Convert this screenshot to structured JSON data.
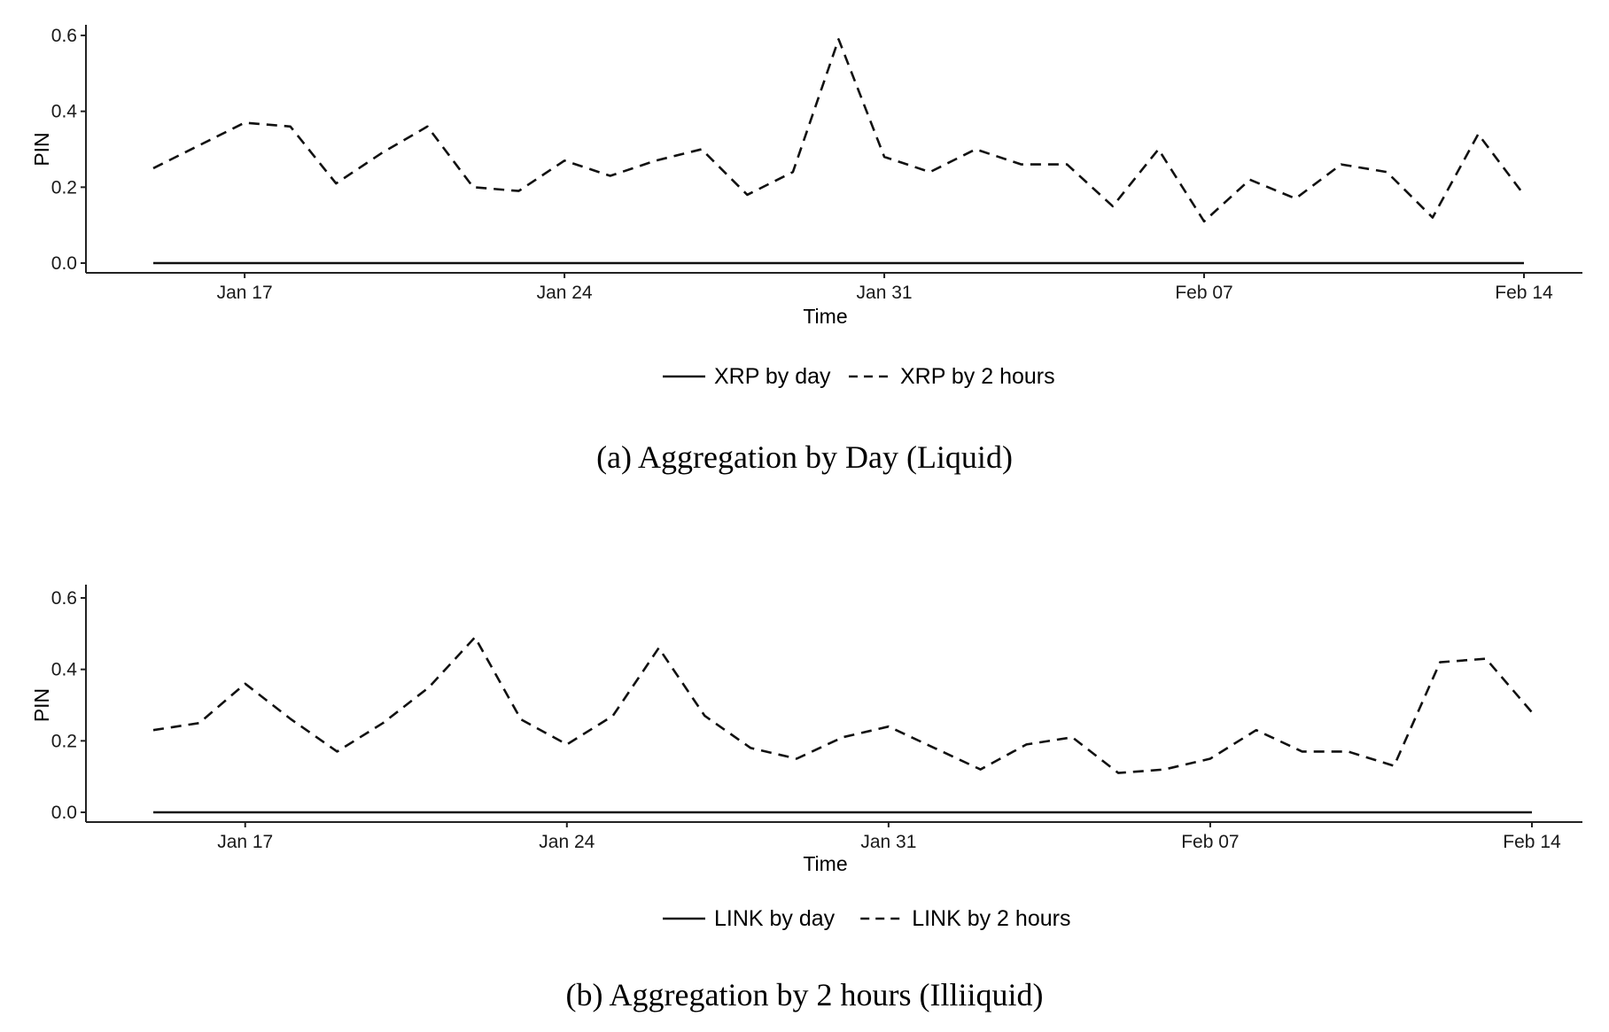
{
  "chart_data": [
    {
      "type": "line",
      "caption": "(a)  Aggregation by Day (Liquid)",
      "xlabel": "Time",
      "ylabel": "PIN",
      "ylim": [
        0,
        0.6
      ],
      "yticks": [
        "0.0",
        "0.2",
        "0.4",
        "0.6"
      ],
      "xticks": [
        {
          "date": "2022-01-17",
          "label": "Jan 17"
        },
        {
          "date": "2022-01-24",
          "label": "Jan 24"
        },
        {
          "date": "2022-01-31",
          "label": "Jan 31"
        },
        {
          "date": "2022-02-07",
          "label": "Feb 07"
        },
        {
          "date": "2022-02-14",
          "label": "Feb 14"
        }
      ],
      "legend_position": "bottom",
      "series": [
        {
          "name": "XRP by day",
          "style": "solid",
          "x": [
            "2022-01-15",
            "2022-02-14"
          ],
          "y": [
            0.0,
            0.0
          ]
        },
        {
          "name": "XRP by 2 hours",
          "style": "dashed",
          "x": [
            "2022-01-15",
            "2022-01-16",
            "2022-01-17",
            "2022-01-18",
            "2022-01-19",
            "2022-01-20",
            "2022-01-21",
            "2022-01-22",
            "2022-01-23",
            "2022-01-24",
            "2022-01-25",
            "2022-01-26",
            "2022-01-27",
            "2022-01-28",
            "2022-01-29",
            "2022-01-30",
            "2022-01-31",
            "2022-02-01",
            "2022-02-02",
            "2022-02-03",
            "2022-02-04",
            "2022-02-05",
            "2022-02-06",
            "2022-02-07",
            "2022-02-08",
            "2022-02-09",
            "2022-02-10",
            "2022-02-11",
            "2022-02-12",
            "2022-02-13",
            "2022-02-14"
          ],
          "y": [
            0.25,
            0.31,
            0.37,
            0.36,
            0.21,
            0.29,
            0.36,
            0.2,
            0.19,
            0.27,
            0.23,
            0.27,
            0.3,
            0.18,
            0.24,
            0.59,
            0.28,
            0.24,
            0.3,
            0.26,
            0.26,
            0.15,
            0.3,
            0.11,
            0.22,
            0.17,
            0.26,
            0.24,
            0.12,
            0.34,
            0.18
          ]
        }
      ]
    },
    {
      "type": "line",
      "caption": "(b)  Aggregation by 2 hours (Illiiquid)",
      "xlabel": "Time",
      "ylabel": "PIN",
      "ylim": [
        0,
        0.6
      ],
      "yticks": [
        "0.0",
        "0.2",
        "0.4",
        "0.6"
      ],
      "xticks": [
        {
          "date": "2022-01-17",
          "label": "Jan 17"
        },
        {
          "date": "2022-01-24",
          "label": "Jan 24"
        },
        {
          "date": "2022-01-31",
          "label": "Jan 31"
        },
        {
          "date": "2022-02-07",
          "label": "Feb 07"
        },
        {
          "date": "2022-02-14",
          "label": "Feb 14"
        }
      ],
      "legend_position": "bottom",
      "series": [
        {
          "name": "LINK by day",
          "style": "solid",
          "x": [
            "2022-01-15",
            "2022-02-14"
          ],
          "y": [
            0.0,
            0.0
          ]
        },
        {
          "name": "LINK by 2 hours",
          "style": "dashed",
          "x": [
            "2022-01-15",
            "2022-01-16",
            "2022-01-17",
            "2022-01-18",
            "2022-01-19",
            "2022-01-20",
            "2022-01-21",
            "2022-01-22",
            "2022-01-23",
            "2022-01-24",
            "2022-01-25",
            "2022-01-26",
            "2022-01-27",
            "2022-01-28",
            "2022-01-29",
            "2022-01-30",
            "2022-01-31",
            "2022-02-01",
            "2022-02-02",
            "2022-02-03",
            "2022-02-04",
            "2022-02-05",
            "2022-02-06",
            "2022-02-07",
            "2022-02-08",
            "2022-02-09",
            "2022-02-10",
            "2022-02-11",
            "2022-02-12",
            "2022-02-13",
            "2022-02-14"
          ],
          "y": [
            0.23,
            0.25,
            0.36,
            0.26,
            0.17,
            0.25,
            0.35,
            0.49,
            0.26,
            0.19,
            0.27,
            0.46,
            0.27,
            0.18,
            0.15,
            0.21,
            0.24,
            0.18,
            0.12,
            0.19,
            0.21,
            0.11,
            0.12,
            0.15,
            0.23,
            0.17,
            0.17,
            0.13,
            0.42,
            0.43,
            0.28
          ]
        }
      ]
    }
  ]
}
